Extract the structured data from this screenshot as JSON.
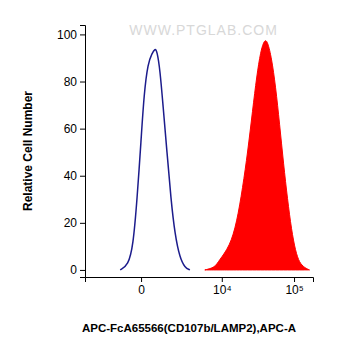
{
  "chart_data": {
    "type": "line",
    "xlabel": "APC-FcA65566(CD107b/LAMP2),APC-A",
    "ylabel": "Relative Cell Number",
    "annotations": [
      "WWW.PTGLAB.COM"
    ],
    "log": "x",
    "xlim": [
      -4200,
      180000
    ],
    "xticks": [
      0,
      {
        "value": 10000,
        "label": "10⁴"
      },
      {
        "value": 100000,
        "label": "10⁵"
      }
    ],
    "ylim": [
      -3,
      104
    ],
    "yticks": [
      0,
      20,
      40,
      60,
      80,
      100
    ],
    "series": [
      {
        "type": "line",
        "color": "#1c1c8c",
        "x": [
          -820,
          -445,
          -253,
          -119,
          0,
          88,
          218,
          365,
          487,
          576,
          719,
          876,
          1110,
          1372,
          1671,
          2097,
          2597,
          3177
        ],
        "values": [
          0,
          2,
          10,
          30,
          55,
          75,
          88,
          92,
          94,
          93,
          85,
          70,
          50,
          30,
          15,
          5,
          1,
          0
        ]
      },
      {
        "type": "area",
        "color": "#ff0000",
        "x": [
          5560,
          7890,
          9090,
          13030,
          16370,
          19860,
          23300,
          27320,
          31000,
          35180,
          39900,
          43810,
          49630,
          56270,
          63720,
          72180,
          81630,
          92450,
          104600,
          118400,
          138300,
          161300
        ],
        "values": [
          0,
          1,
          4,
          10,
          20,
          35,
          50,
          68,
          82,
          93,
          98,
          97,
          90,
          78,
          62,
          45,
          30,
          17,
          8,
          3,
          1,
          0
        ]
      }
    ]
  }
}
